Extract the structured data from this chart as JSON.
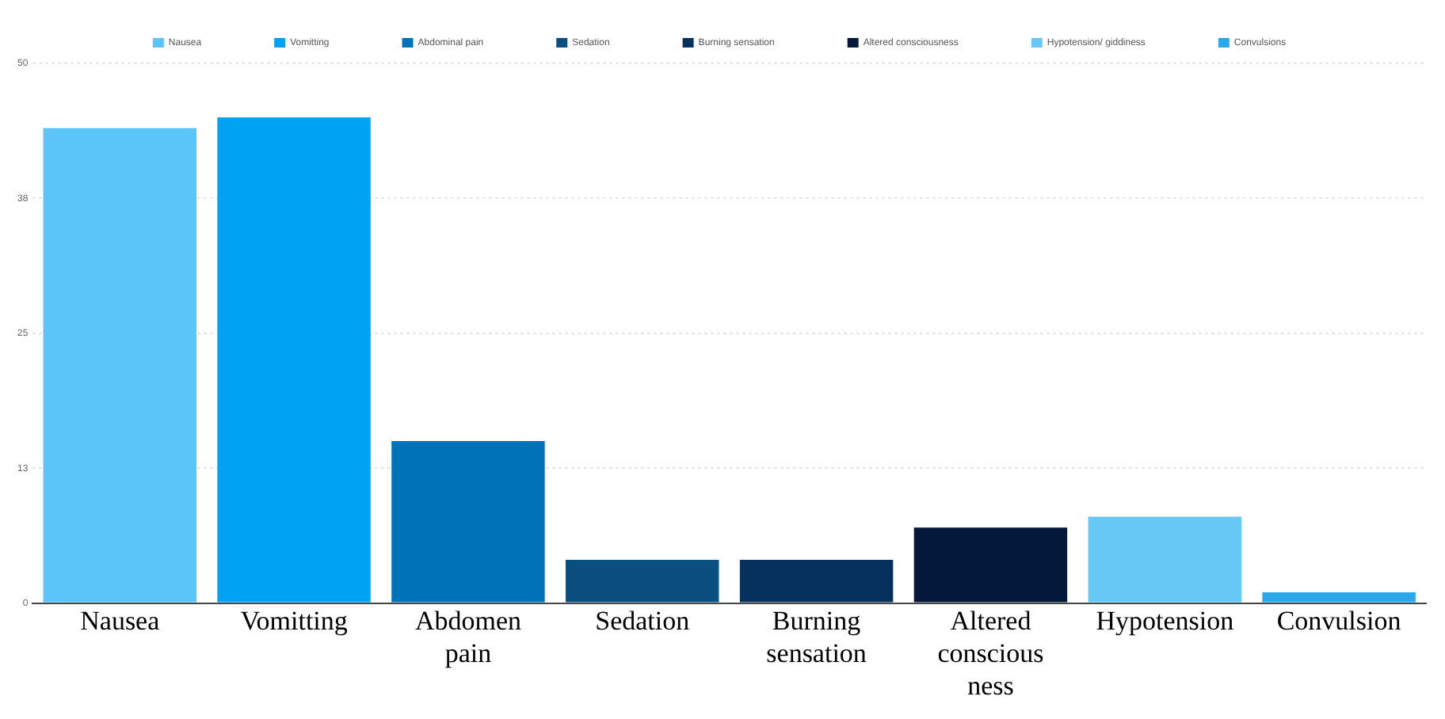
{
  "chart_data": {
    "type": "bar",
    "stacked": true,
    "categories": [
      "Nausea",
      "Vomitting",
      "Abdomen pain",
      "Sedation",
      "Burning sensation",
      "Altered conscious ness",
      "Hypotension",
      "Convulsion"
    ],
    "series": [
      {
        "name": "Nausea",
        "color": "#5bc4f9",
        "values": [
          44,
          null,
          null,
          null,
          null,
          null,
          null,
          null
        ]
      },
      {
        "name": "Vomitting",
        "color": "#00a2f2",
        "values": [
          null,
          45,
          null,
          null,
          null,
          null,
          null,
          null
        ]
      },
      {
        "name": "Abdominal pain",
        "color": "#0072b8",
        "values": [
          null,
          null,
          15,
          null,
          null,
          null,
          null,
          null
        ]
      },
      {
        "name": "Sedation",
        "color": "#0a4f80",
        "values": [
          null,
          null,
          null,
          4,
          null,
          null,
          null,
          null
        ]
      },
      {
        "name": "Burning sensation",
        "color": "#06305e",
        "values": [
          null,
          null,
          null,
          null,
          4,
          null,
          null,
          null
        ]
      },
      {
        "name": "Altered consciousness",
        "color": "#03183a",
        "values": [
          null,
          null,
          null,
          null,
          null,
          7,
          null,
          null
        ]
      },
      {
        "name": "Hypotension/ giddiness",
        "color": "#68c8f5",
        "values": [
          null,
          null,
          null,
          null,
          null,
          null,
          8,
          null
        ]
      },
      {
        "name": "Convulsions",
        "color": "#2aa8e8",
        "values": [
          null,
          null,
          null,
          null,
          null,
          null,
          null,
          1
        ]
      }
    ],
    "ylim": [
      0,
      50
    ],
    "yticks": [
      0,
      {
        "value": 12.5,
        "label": "13"
      },
      25,
      {
        "value": 37.5,
        "label": "38"
      },
      50
    ],
    "grid": "y",
    "legend": "top"
  }
}
